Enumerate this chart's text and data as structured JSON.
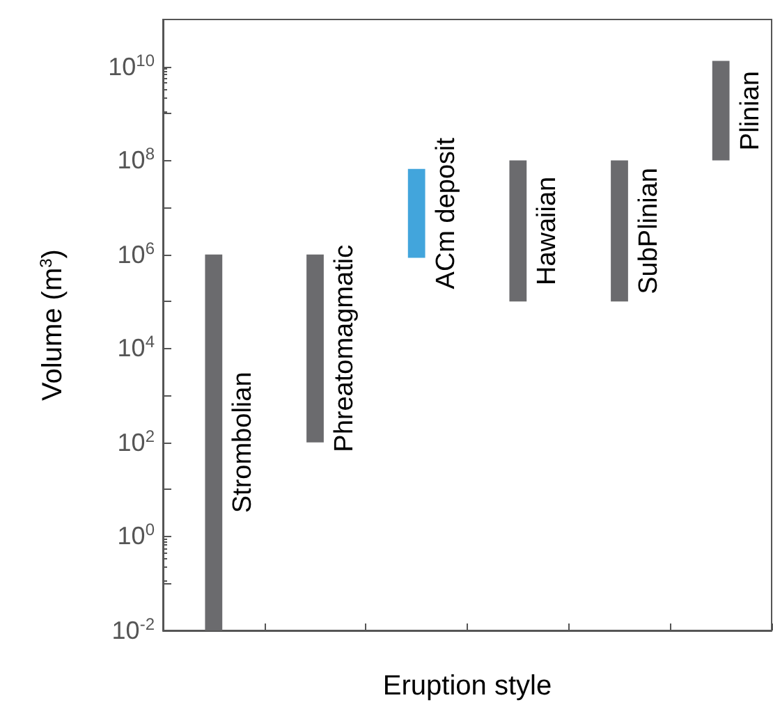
{
  "chart_data": {
    "type": "bar",
    "xlabel": "Eruption style",
    "ylabel": "Volume (m$^{3}$)",
    "categories": [
      "Strombolian",
      "Phreatomagmatic",
      "ACm deposit",
      "Hawaiian",
      "SubPlinian",
      "Plinian"
    ],
    "base": [
      0.01,
      100,
      850000,
      100000,
      100000,
      100000000
    ],
    "values": [
      1000000,
      1000000,
      65000000,
      100000000,
      100000000,
      13000000000
    ],
    "colors": [
      "#6b6b6e",
      "#6b6b6e",
      "#42a5dc",
      "#6b6b6e",
      "#6b6b6e",
      "#6b6b6e"
    ],
    "log": true,
    "ylim": [
      0.01,
      100000000000
    ],
    "yticks": [
      {
        "value": 0.01,
        "label": "10$^{-2}$"
      },
      {
        "value": 0.1,
        "label": null
      },
      {
        "value": 1,
        "label": "10$^{0}$"
      },
      {
        "value": 10,
        "label": null
      },
      {
        "value": 100,
        "label": "10$^{2}$"
      },
      {
        "value": 1000,
        "label": null
      },
      {
        "value": 10000,
        "label": "10$^{4}$"
      },
      {
        "value": 100000,
        "label": null
      },
      {
        "value": 1000000,
        "label": "10$^{6}$"
      },
      {
        "value": 10000000,
        "label": null
      },
      {
        "value": 100000000,
        "label": "10$^{8}$"
      },
      {
        "value": 1000000000,
        "label": null
      },
      {
        "value": 10000000000,
        "label": "10$^{10}$"
      }
    ],
    "tick_labels": "y",
    "grid": false
  }
}
